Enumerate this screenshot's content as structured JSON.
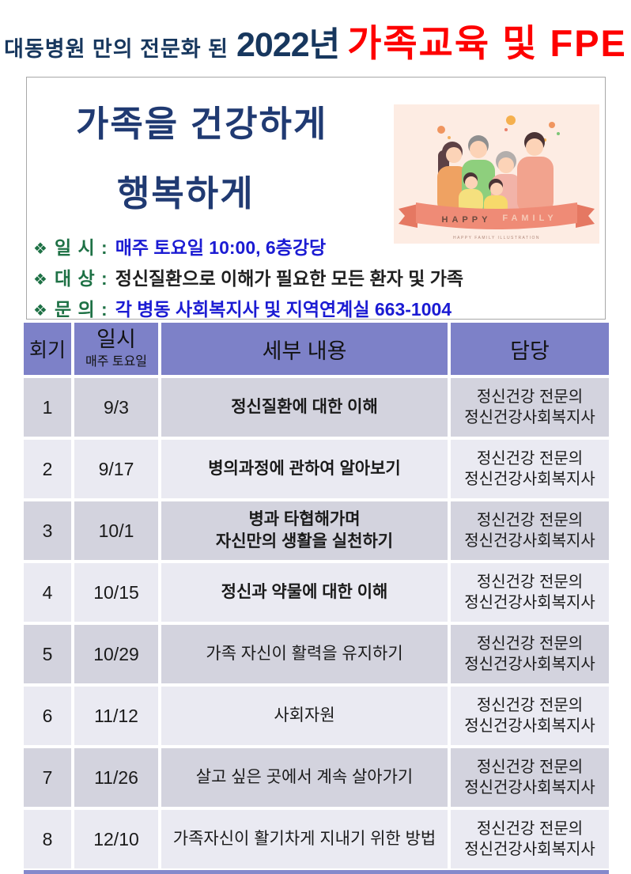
{
  "top_title": {
    "prefix": "대동병원 만의 전문화 된",
    "year": "2022년",
    "highlight": "가족교육 및 FPE"
  },
  "hero": {
    "heading_line1": "가족을 건강하게",
    "heading_line2": "행복하게",
    "bullet": "❖",
    "info_items": [
      {
        "label": "일 시 :",
        "value": "매주 토요일 10:00, 6층강당"
      },
      {
        "label": "대 상 :",
        "value": "정신질환으로 이해가 필요한 모든 환자 및 가족"
      },
      {
        "label": "문 의 :",
        "value": "각 병동 사회복지사 및 지역연계실 663-1004"
      }
    ],
    "illustration": {
      "ribbon_word1": "HAPPY",
      "ribbon_word2": "FAMILY",
      "caption": "HAPPY FAMILY ILLUSTRATION"
    }
  },
  "table": {
    "headers": {
      "round": "회기",
      "date_main": "일시",
      "date_sub": "매주 토요일",
      "content": "세부 내용",
      "staff": "담당"
    },
    "rows": [
      {
        "no": "1",
        "date": "9/3",
        "content": "정신질환에 대한 이해",
        "bold": true,
        "staff1": "정신건강 전문의",
        "staff2": "정신건강사회복지사"
      },
      {
        "no": "2",
        "date": "9/17",
        "content": "병의과정에 관하여 알아보기",
        "bold": true,
        "staff1": "정신건강 전문의",
        "staff2": "정신건강사회복지사"
      },
      {
        "no": "3",
        "date": "10/1",
        "content": "병과 타협해가며\n자신만의 생활을 실천하기",
        "bold": true,
        "staff1": "정신건강 전문의",
        "staff2": "정신건강사회복지사"
      },
      {
        "no": "4",
        "date": "10/15",
        "content": "정신과 약물에 대한 이해",
        "bold": true,
        "staff1": "정신건강 전문의",
        "staff2": "정신건강사회복지사"
      },
      {
        "no": "5",
        "date": "10/29",
        "content": "가족 자신이 활력을 유지하기",
        "bold": false,
        "staff1": "정신건강 전문의",
        "staff2": "정신건강사회복지사"
      },
      {
        "no": "6",
        "date": "11/12",
        "content": "사회자원",
        "bold": false,
        "staff1": "정신건강 전문의",
        "staff2": "정신건강사회복지사"
      },
      {
        "no": "7",
        "date": "11/26",
        "content": "살고 싶은 곳에서 계속 살아가기",
        "bold": false,
        "staff1": "정신건강 전문의",
        "staff2": "정신건강사회복지사"
      },
      {
        "no": "8",
        "date": "12/10",
        "content": "가족자신이 활기차게 지내기 위한 방법",
        "bold": false,
        "staff1": "정신건강 전문의",
        "staff2": "정신건강사회복지사"
      }
    ]
  },
  "colors": {
    "title_navy": "#17375e",
    "title_red": "#fe0000",
    "heading_navy": "#203a72",
    "label_green": "#1e7145",
    "value_blue": "#1b1bd3",
    "header_purple": "#7d81c8",
    "row_dark": "#d3d3de",
    "row_light": "#eaeaf2",
    "illustration_bg": "#fdece3",
    "ribbon_salmon": "#ef8b76"
  }
}
